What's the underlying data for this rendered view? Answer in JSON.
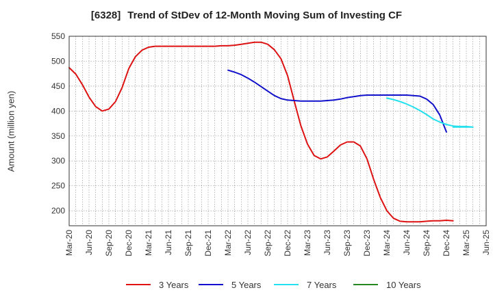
{
  "title": {
    "code": "[6328]",
    "text": "Trend of StDev of 12-Month Moving Sum of Investing CF"
  },
  "chart_data": {
    "type": "line",
    "title": "[6328]  Trend of StDev of 12-Month Moving Sum of Investing CF",
    "ylabel": "Amount (million yen)",
    "xlabel": "",
    "ylim": [
      170,
      550
    ],
    "yticks": [
      200,
      250,
      300,
      350,
      400,
      450,
      500,
      550
    ],
    "x_ticks": [
      "Mar-20",
      "Jun-20",
      "Sep-20",
      "Dec-20",
      "Mar-21",
      "Jun-21",
      "Sep-21",
      "Dec-21",
      "Mar-22",
      "Jun-22",
      "Sep-22",
      "Dec-22",
      "Mar-23",
      "Jun-23",
      "Sep-23",
      "Dec-23",
      "Mar-24",
      "Jun-24",
      "Sep-24",
      "Dec-24",
      "Mar-25",
      "Jun-25"
    ],
    "grid": true,
    "legend_position": "bottom",
    "series": [
      {
        "name": "3 Years",
        "color": "#dd1111",
        "points": [
          [
            "Mar-20",
            487
          ],
          [
            "Apr-20",
            474
          ],
          [
            "May-20",
            453
          ],
          [
            "Jun-20",
            428
          ],
          [
            "Jul-20",
            409
          ],
          [
            "Aug-20",
            400
          ],
          [
            "Sep-20",
            404
          ],
          [
            "Oct-20",
            419
          ],
          [
            "Nov-20",
            447
          ],
          [
            "Dec-20",
            485
          ],
          [
            "Jan-21",
            509
          ],
          [
            "Feb-21",
            522
          ],
          [
            "Mar-21",
            528
          ],
          [
            "Apr-21",
            530
          ],
          [
            "May-21",
            530
          ],
          [
            "Jun-21",
            530
          ],
          [
            "Jul-21",
            530
          ],
          [
            "Aug-21",
            530
          ],
          [
            "Sep-21",
            530
          ],
          [
            "Oct-21",
            530
          ],
          [
            "Nov-21",
            530
          ],
          [
            "Dec-21",
            530
          ],
          [
            "Jan-22",
            530
          ],
          [
            "Feb-22",
            531
          ],
          [
            "Mar-22",
            531
          ],
          [
            "Apr-22",
            532
          ],
          [
            "May-22",
            534
          ],
          [
            "Jun-22",
            536
          ],
          [
            "Jul-22",
            538
          ],
          [
            "Aug-22",
            538
          ],
          [
            "Sep-22",
            534
          ],
          [
            "Oct-22",
            523
          ],
          [
            "Nov-22",
            505
          ],
          [
            "Dec-22",
            471
          ],
          [
            "Jan-23",
            420
          ],
          [
            "Feb-23",
            371
          ],
          [
            "Mar-23",
            334
          ],
          [
            "Apr-23",
            311
          ],
          [
            "May-23",
            304
          ],
          [
            "Jun-23",
            308
          ],
          [
            "Jul-23",
            320
          ],
          [
            "Aug-23",
            332
          ],
          [
            "Sep-23",
            338
          ],
          [
            "Oct-23",
            338
          ],
          [
            "Nov-23",
            330
          ],
          [
            "Dec-23",
            304
          ],
          [
            "Jan-24",
            263
          ],
          [
            "Feb-24",
            227
          ],
          [
            "Mar-24",
            200
          ],
          [
            "Apr-24",
            185
          ],
          [
            "May-24",
            179
          ],
          [
            "Jun-24",
            178
          ],
          [
            "Jul-24",
            178
          ],
          [
            "Aug-24",
            178
          ],
          [
            "Sep-24",
            179
          ],
          [
            "Oct-24",
            180
          ],
          [
            "Nov-24",
            180
          ],
          [
            "Dec-24",
            181
          ],
          [
            "Jan-25",
            180
          ]
        ]
      },
      {
        "name": "5 Years",
        "color": "#1111cc",
        "points": [
          [
            "Mar-22",
            482
          ],
          [
            "Apr-22",
            478
          ],
          [
            "May-22",
            473
          ],
          [
            "Jun-22",
            466
          ],
          [
            "Jul-22",
            458
          ],
          [
            "Aug-22",
            449
          ],
          [
            "Sep-22",
            440
          ],
          [
            "Oct-22",
            431
          ],
          [
            "Nov-22",
            425
          ],
          [
            "Dec-22",
            422
          ],
          [
            "Jan-23",
            421
          ],
          [
            "Feb-23",
            420
          ],
          [
            "Mar-23",
            420
          ],
          [
            "Apr-23",
            420
          ],
          [
            "May-23",
            420
          ],
          [
            "Jun-23",
            421
          ],
          [
            "Jul-23",
            422
          ],
          [
            "Aug-23",
            424
          ],
          [
            "Sep-23",
            427
          ],
          [
            "Oct-23",
            429
          ],
          [
            "Nov-23",
            431
          ],
          [
            "Dec-23",
            432
          ],
          [
            "Jan-24",
            432
          ],
          [
            "Feb-24",
            432
          ],
          [
            "Mar-24",
            432
          ],
          [
            "Apr-24",
            432
          ],
          [
            "May-24",
            432
          ],
          [
            "Jun-24",
            432
          ],
          [
            "Jul-24",
            431
          ],
          [
            "Aug-24",
            430
          ],
          [
            "Sep-24",
            424
          ],
          [
            "Oct-24",
            413
          ],
          [
            "Nov-24",
            392
          ],
          [
            "Dec-24",
            358
          ]
        ]
      },
      {
        "name": "7 Years",
        "color": "#22e0ee",
        "points": [
          [
            "Mar-24",
            426
          ],
          [
            "Apr-24",
            423
          ],
          [
            "May-24",
            419
          ],
          [
            "Jun-24",
            414
          ],
          [
            "Jul-24",
            408
          ],
          [
            "Aug-24",
            401
          ],
          [
            "Sep-24",
            393
          ],
          [
            "Oct-24",
            384
          ],
          [
            "Nov-24",
            378
          ],
          [
            "Dec-24",
            373
          ],
          [
            "Jan-25",
            370
          ],
          [
            "Feb-25",
            369
          ],
          [
            "Mar-25",
            369
          ],
          [
            "Apr-25",
            368
          ],
          [
            "Jan-25",
            368
          ]
        ]
      },
      {
        "name": "10 Years",
        "color": "#228822",
        "points": []
      }
    ]
  },
  "legend": {
    "items": [
      {
        "label": "3 Years",
        "color": "#dd1111"
      },
      {
        "label": "5 Years",
        "color": "#1111cc"
      },
      {
        "label": "7 Years",
        "color": "#22e0ee"
      },
      {
        "label": "10 Years",
        "color": "#228822"
      }
    ]
  }
}
